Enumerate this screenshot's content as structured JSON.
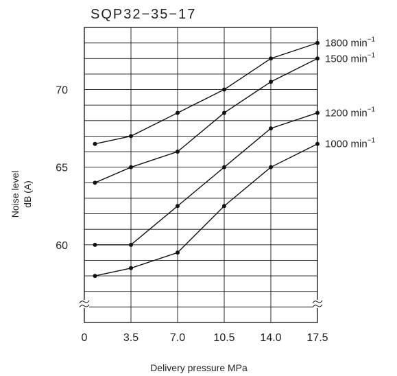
{
  "chart_data": {
    "type": "line",
    "title": "SQP32−35−17",
    "xlabel": "Delivery pressure   MPa",
    "ylabel": [
      "Noise level",
      "dB (A)"
    ],
    "x": [
      0.8,
      3.5,
      7.0,
      10.5,
      14.0,
      17.5
    ],
    "x_ticks": [
      {
        "value": 0,
        "label": "0"
      },
      {
        "value": 3.5,
        "label": "3.5"
      },
      {
        "value": 7.0,
        "label": "7.0"
      },
      {
        "value": 10.5,
        "label": "10.5"
      },
      {
        "value": 14.0,
        "label": "14.0"
      },
      {
        "value": 17.5,
        "label": "17.5"
      }
    ],
    "y_ticks": [
      {
        "value": 60,
        "label": "60"
      },
      {
        "value": 65,
        "label": "65"
      },
      {
        "value": 70,
        "label": "70"
      }
    ],
    "xlim": [
      0,
      17.5
    ],
    "ylim": [
      55,
      74
    ],
    "grid": true,
    "axis_break": "bottom-of-y-axis",
    "series": [
      {
        "name": "1800 min",
        "unit_sup": "−1",
        "values": [
          66.5,
          67.0,
          68.5,
          70.0,
          72.0,
          73.0
        ]
      },
      {
        "name": "1500 min",
        "unit_sup": "−1",
        "values": [
          64.0,
          65.0,
          66.0,
          68.5,
          70.5,
          72.0
        ]
      },
      {
        "name": "1200 min",
        "unit_sup": "−1",
        "values": [
          60.0,
          60.0,
          62.5,
          65.0,
          67.5,
          68.5
        ]
      },
      {
        "name": "1000 min",
        "unit_sup": "−1",
        "values": [
          58.0,
          58.5,
          59.5,
          62.5,
          65.0,
          66.5
        ]
      }
    ]
  }
}
